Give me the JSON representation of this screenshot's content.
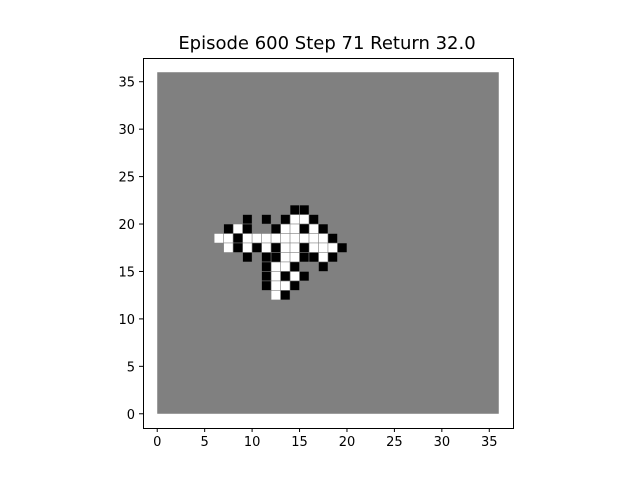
{
  "title": "Episode 600 Step 71 Return 32.0",
  "episode": 600,
  "step": 71,
  "return": 32.0,
  "colors": {
    "background": "#808080",
    "empty_cell": "#ffffff",
    "visited_cell": "#ffffff",
    "wall_cell": "#000000",
    "axes_frame": "#000000"
  },
  "axes": {
    "xlim": [
      -1.5,
      37.5
    ],
    "ylim": [
      -1.5,
      37.5
    ],
    "xticks": [
      0,
      5,
      10,
      15,
      20,
      25,
      30,
      35
    ],
    "yticks": [
      0,
      5,
      10,
      15,
      20,
      25,
      30,
      35
    ],
    "xtick_labels": [
      "0",
      "5",
      "10",
      "15",
      "20",
      "25",
      "30",
      "35"
    ],
    "ytick_labels": [
      "0",
      "5",
      "10",
      "15",
      "20",
      "25",
      "30",
      "35"
    ]
  },
  "grid": {
    "extent": [
      0,
      36
    ],
    "white_cells": [
      [
        14,
        20
      ],
      [
        15,
        20
      ],
      [
        8,
        19
      ],
      [
        13,
        19
      ],
      [
        14,
        19
      ],
      [
        16,
        19
      ],
      [
        6,
        18
      ],
      [
        7,
        18
      ],
      [
        9,
        18
      ],
      [
        10,
        18
      ],
      [
        11,
        18
      ],
      [
        12,
        18
      ],
      [
        13,
        18
      ],
      [
        14,
        18
      ],
      [
        15,
        18
      ],
      [
        16,
        18
      ],
      [
        17,
        18
      ],
      [
        7,
        17
      ],
      [
        9,
        17
      ],
      [
        11,
        17
      ],
      [
        13,
        17
      ],
      [
        14,
        17
      ],
      [
        16,
        17
      ],
      [
        17,
        17
      ],
      [
        18,
        17
      ],
      [
        13,
        16
      ],
      [
        14,
        16
      ],
      [
        17,
        16
      ],
      [
        12,
        15
      ],
      [
        13,
        15
      ],
      [
        12,
        14
      ],
      [
        14,
        14
      ],
      [
        12,
        13
      ],
      [
        13,
        13
      ],
      [
        12,
        12
      ]
    ],
    "black_cells": [
      [
        14,
        21
      ],
      [
        15,
        21
      ],
      [
        9,
        20
      ],
      [
        11,
        20
      ],
      [
        13,
        20
      ],
      [
        16,
        20
      ],
      [
        7,
        19
      ],
      [
        9,
        19
      ],
      [
        12,
        19
      ],
      [
        15,
        19
      ],
      [
        17,
        19
      ],
      [
        8,
        18
      ],
      [
        18,
        18
      ],
      [
        8,
        17
      ],
      [
        10,
        17
      ],
      [
        12,
        17
      ],
      [
        15,
        17
      ],
      [
        19,
        17
      ],
      [
        9,
        16
      ],
      [
        11,
        16
      ],
      [
        12,
        16
      ],
      [
        15,
        16
      ],
      [
        16,
        16
      ],
      [
        18,
        16
      ],
      [
        11,
        15
      ],
      [
        14,
        15
      ],
      [
        17,
        15
      ],
      [
        11,
        14
      ],
      [
        13,
        14
      ],
      [
        15,
        14
      ],
      [
        11,
        13
      ],
      [
        14,
        13
      ],
      [
        13,
        12
      ]
    ]
  }
}
